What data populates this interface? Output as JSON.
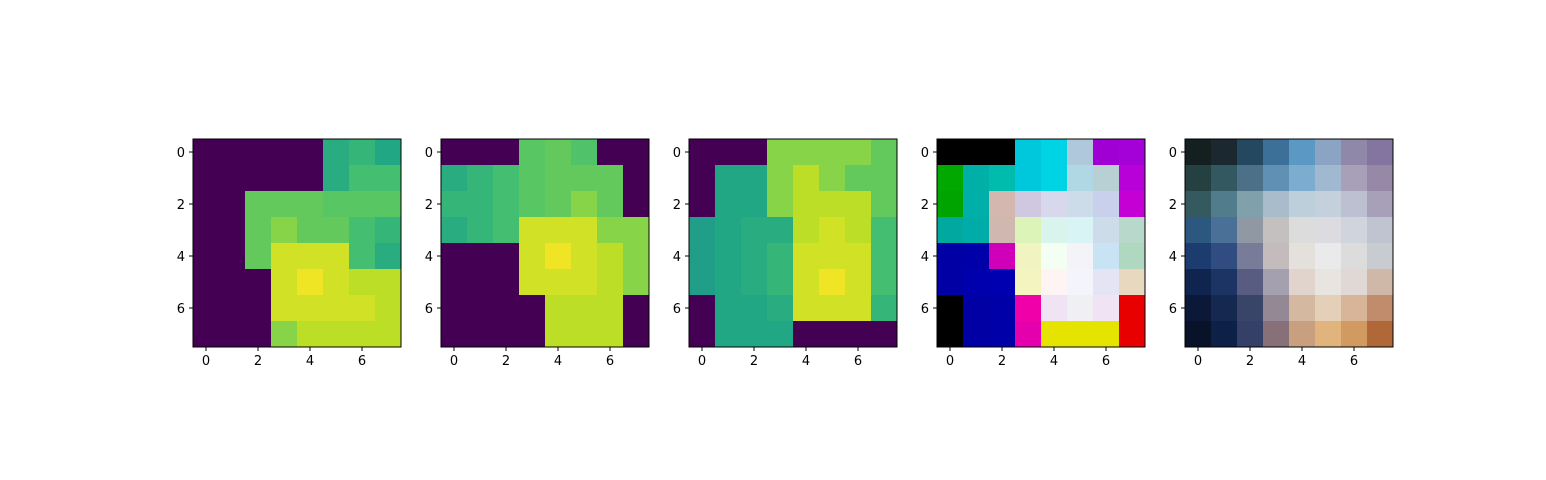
{
  "chart_data": [
    {
      "type": "heatmap",
      "colormap": "viridis",
      "vmin": 0,
      "vmax": 1,
      "xticks": [
        "0",
        "2",
        "4",
        "6"
      ],
      "yticks": [
        "0",
        "2",
        "4",
        "6"
      ],
      "values": [
        [
          0.0,
          0.0,
          0.0,
          0.0,
          0.0,
          0.62,
          0.66,
          0.6
        ],
        [
          0.0,
          0.0,
          0.0,
          0.0,
          0.0,
          0.62,
          0.7,
          0.7
        ],
        [
          0.0,
          0.0,
          0.76,
          0.76,
          0.76,
          0.74,
          0.74,
          0.74
        ],
        [
          0.0,
          0.0,
          0.76,
          0.82,
          0.76,
          0.76,
          0.7,
          0.66
        ],
        [
          0.0,
          0.0,
          0.76,
          0.93,
          0.93,
          0.93,
          0.7,
          0.62
        ],
        [
          0.0,
          0.0,
          0.0,
          0.93,
          0.98,
          0.93,
          0.9,
          0.9
        ],
        [
          0.0,
          0.0,
          0.0,
          0.93,
          0.93,
          0.93,
          0.93,
          0.9
        ],
        [
          0.0,
          0.0,
          0.0,
          0.82,
          0.9,
          0.9,
          0.9,
          0.9
        ]
      ]
    },
    {
      "type": "heatmap",
      "colormap": "viridis",
      "vmin": 0,
      "vmax": 1,
      "xticks": [
        "0",
        "2",
        "4",
        "6"
      ],
      "yticks": [
        "0",
        "2",
        "4",
        "6"
      ],
      "values": [
        [
          0.0,
          0.0,
          0.0,
          0.74,
          0.76,
          0.72,
          0.0,
          0.0
        ],
        [
          0.62,
          0.66,
          0.7,
          0.74,
          0.76,
          0.76,
          0.76,
          0.0
        ],
        [
          0.66,
          0.66,
          0.7,
          0.74,
          0.76,
          0.82,
          0.76,
          0.0
        ],
        [
          0.62,
          0.66,
          0.7,
          0.93,
          0.93,
          0.93,
          0.82,
          0.82
        ],
        [
          0.0,
          0.0,
          0.0,
          0.93,
          0.98,
          0.93,
          0.9,
          0.82
        ],
        [
          0.0,
          0.0,
          0.0,
          0.93,
          0.93,
          0.93,
          0.9,
          0.82
        ],
        [
          0.0,
          0.0,
          0.0,
          0.0,
          0.9,
          0.9,
          0.9,
          0.0
        ],
        [
          0.0,
          0.0,
          0.0,
          0.0,
          0.9,
          0.9,
          0.9,
          0.0
        ]
      ]
    },
    {
      "type": "heatmap",
      "colormap": "viridis",
      "vmin": 0,
      "vmax": 1,
      "xticks": [
        "0",
        "2",
        "4",
        "6"
      ],
      "yticks": [
        "0",
        "2",
        "4",
        "6"
      ],
      "values": [
        [
          0.0,
          0.0,
          0.0,
          0.82,
          0.82,
          0.82,
          0.82,
          0.76
        ],
        [
          0.0,
          0.6,
          0.6,
          0.82,
          0.9,
          0.82,
          0.76,
          0.76
        ],
        [
          0.0,
          0.6,
          0.6,
          0.82,
          0.9,
          0.9,
          0.9,
          0.76
        ],
        [
          0.56,
          0.6,
          0.62,
          0.62,
          0.9,
          0.93,
          0.9,
          0.7
        ],
        [
          0.56,
          0.6,
          0.62,
          0.66,
          0.93,
          0.93,
          0.93,
          0.7
        ],
        [
          0.56,
          0.6,
          0.62,
          0.66,
          0.93,
          0.98,
          0.93,
          0.7
        ],
        [
          0.0,
          0.6,
          0.6,
          0.62,
          0.93,
          0.93,
          0.93,
          0.66
        ],
        [
          0.0,
          0.6,
          0.6,
          0.6,
          0.0,
          0.0,
          0.0,
          0.0
        ]
      ]
    },
    {
      "type": "heatmap",
      "colormap": "rgb",
      "xticks": [
        "0",
        "2",
        "4",
        "6"
      ],
      "yticks": [
        "0",
        "2",
        "4",
        "6"
      ],
      "colors": [
        [
          "#000000",
          "#000000",
          "#000000",
          "#00c8dc",
          "#00d4e4",
          "#b0c8dc",
          "#a000d4",
          "#a400d8"
        ],
        [
          "#00a800",
          "#00b0a8",
          "#00bcac",
          "#00c8dc",
          "#00d4e4",
          "#b0d8e4",
          "#b8d0d4",
          "#b800d8"
        ],
        [
          "#00a400",
          "#00b0a8",
          "#d4b8b0",
          "#d0c8e0",
          "#d8d8ec",
          "#ccdce8",
          "#c8d0ec",
          "#c400d4"
        ],
        [
          "#00a8a0",
          "#00aca8",
          "#d0b8b0",
          "#dcf4b8",
          "#d8f4ec",
          "#d8f4f4",
          "#ccdce8",
          "#b8d8cc"
        ],
        [
          "#0000a4",
          "#0000a8",
          "#d000b8",
          "#f0f4c0",
          "#f4fff4",
          "#f4f4f8",
          "#c8e4f4",
          "#b0d8c0"
        ],
        [
          "#0000a4",
          "#0000ac",
          "#0000b0",
          "#f4f4c0",
          "#fff4f4",
          "#f4f4fc",
          "#e4e4f4",
          "#e8d8c0"
        ],
        [
          "#000000",
          "#0000a4",
          "#0000a8",
          "#f000a8",
          "#f0e4f4",
          "#f0f0f4",
          "#f0e4f4",
          "#e80000"
        ],
        [
          "#000000",
          "#0000a4",
          "#0000a8",
          "#e400ac",
          "#e4e400",
          "#e4e400",
          "#e4e400",
          "#e80000"
        ]
      ]
    },
    {
      "type": "heatmap",
      "colormap": "rgb",
      "xticks": [
        "0",
        "2",
        "4",
        "6"
      ],
      "yticks": [
        "0",
        "2",
        "4",
        "6"
      ],
      "colors": [
        [
          "#142020",
          "#1c2830",
          "#244860",
          "#3c7098",
          "#5c98c4",
          "#8ca4c4",
          "#9088a8",
          "#8474a0"
        ],
        [
          "#244040",
          "#345860",
          "#4c7088",
          "#6090b4",
          "#7cacd0",
          "#a0b8d0",
          "#a8a0b8",
          "#9888a8"
        ],
        [
          "#345a60",
          "#507c8c",
          "#80a0ac",
          "#a8bccc",
          "#bccfda",
          "#c4d0dc",
          "#bcc0d0",
          "#a8a0b8"
        ],
        [
          "#2c5880",
          "#4a7098",
          "#9098a4",
          "#c4c0c0",
          "#dcdcdc",
          "#dcdce0",
          "#d0d4dc",
          "#c0c4d0"
        ],
        [
          "#1c3c70",
          "#304c80",
          "#787c98",
          "#c4bcbc",
          "#e4e0dc",
          "#eaeaea",
          "#dcdcdc",
          "#c8ccd0"
        ],
        [
          "#102450",
          "#1c3464",
          "#585c80",
          "#a4a0b0",
          "#e0d4cc",
          "#e8e4e0",
          "#e0d8d4",
          "#d0b8a8"
        ],
        [
          "#0c1838",
          "#142850",
          "#384468",
          "#948894",
          "#d4b8a0",
          "#e4d0b8",
          "#d8b498",
          "#c08c6c"
        ],
        [
          "#081228",
          "#0c2048",
          "#344068",
          "#887078",
          "#c8a080",
          "#e0b47c",
          "#d09a60",
          "#b06838"
        ]
      ]
    }
  ]
}
